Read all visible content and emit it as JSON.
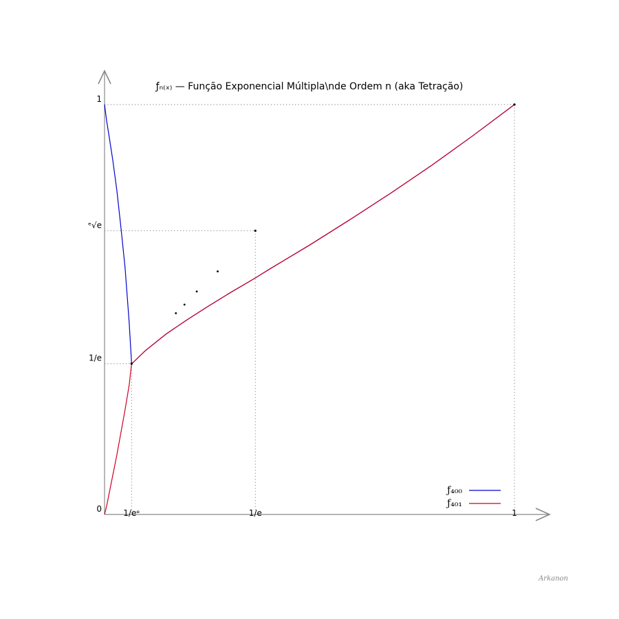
{
  "chart_data": {
    "type": "line",
    "title": "ƒₙ₍ₓ₎ — Função Exponencial Múltipla\\nde Ordem n (aka Tetração)",
    "xlim": [
      0,
      1
    ],
    "ylim": [
      0,
      1
    ],
    "grid": false,
    "legend_position": "bottom-right",
    "x_ticks": [
      {
        "value": 0.06599,
        "label": "1/eᵉ"
      },
      {
        "value": 0.36788,
        "label": "1/e"
      },
      {
        "value": 1,
        "label": "1"
      }
    ],
    "y_ticks": [
      {
        "value": 0,
        "label": "0"
      },
      {
        "value": 0.36788,
        "label": "1/e"
      },
      {
        "value": 0.6922,
        "label": "ᵉ√e"
      },
      {
        "value": 1,
        "label": "1"
      }
    ],
    "reference_points": [
      {
        "x": 0.06599,
        "y": 0.36788
      },
      {
        "x": 0.36788,
        "y": 0.6922
      },
      {
        "x": 1,
        "y": 1
      }
    ],
    "ellipsis_dots": [
      {
        "x": 0.174,
        "y": 0.491
      },
      {
        "x": 0.195,
        "y": 0.512
      },
      {
        "x": 0.225,
        "y": 0.544
      },
      {
        "x": 0.276,
        "y": 0.593
      }
    ],
    "series": [
      {
        "name": "ƒ₄₀₀",
        "color": "#0000cc",
        "x": [
          0.0,
          0.005,
          0.01,
          0.02,
          0.03,
          0.04,
          0.05,
          0.06,
          0.066,
          0.07,
          0.1,
          0.15,
          0.2,
          0.25,
          0.3,
          0.36788,
          0.4,
          0.5,
          0.6,
          0.7,
          0.8,
          0.9,
          1.0
        ],
        "y": [
          1.0,
          0.961,
          0.93,
          0.865,
          0.791,
          0.7,
          0.603,
          0.47,
          0.368,
          0.371,
          0.4,
          0.44,
          0.474,
          0.506,
          0.537,
          0.577,
          0.597,
          0.657,
          0.72,
          0.785,
          0.853,
          0.925,
          1.0
        ]
      },
      {
        "name": "ƒ₄₀₁",
        "color": "#cc0022",
        "x": [
          0.0,
          0.005,
          0.01,
          0.02,
          0.03,
          0.04,
          0.05,
          0.06,
          0.066,
          0.07,
          0.1,
          0.15,
          0.2,
          0.25,
          0.3,
          0.36788,
          0.4,
          0.5,
          0.6,
          0.7,
          0.8,
          0.9,
          1.0
        ],
        "y": [
          0.0,
          0.02,
          0.045,
          0.095,
          0.145,
          0.2,
          0.255,
          0.315,
          0.368,
          0.371,
          0.4,
          0.44,
          0.474,
          0.506,
          0.537,
          0.577,
          0.597,
          0.657,
          0.72,
          0.785,
          0.853,
          0.925,
          1.0
        ]
      }
    ]
  },
  "credit": "Arkanon"
}
